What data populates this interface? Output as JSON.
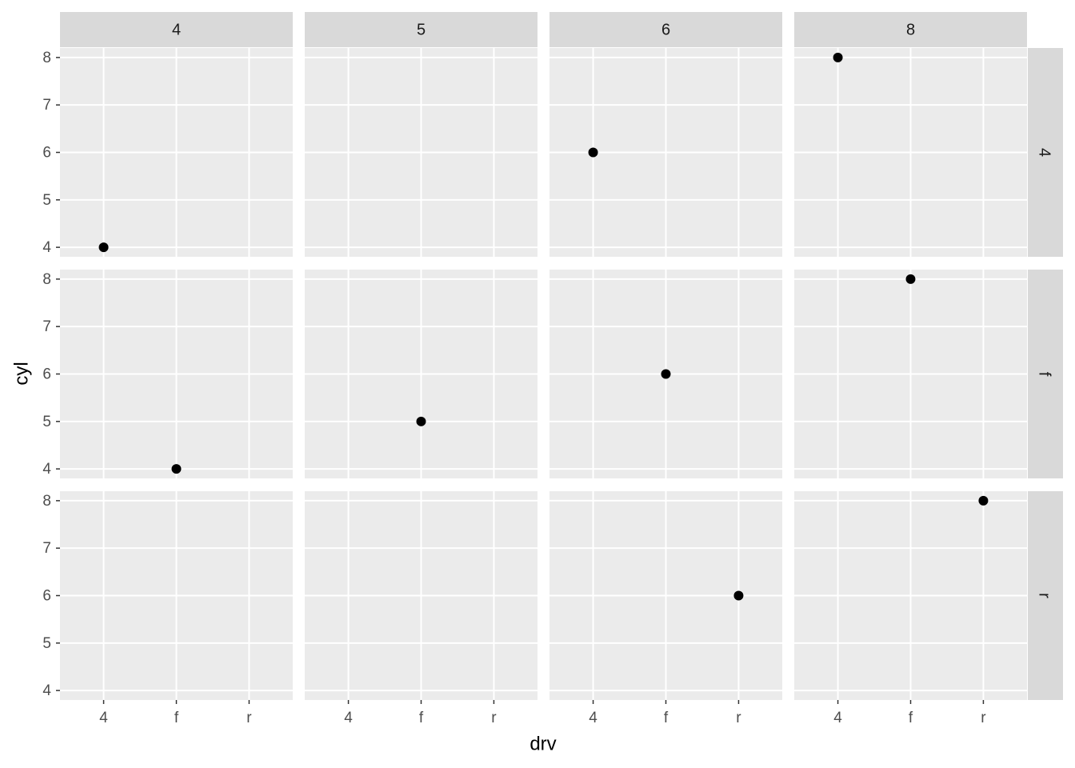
{
  "chart_data": {
    "type": "scatter",
    "x_label": "drv",
    "y_label": "cyl",
    "facet_cols": [
      "4",
      "5",
      "6",
      "8"
    ],
    "facet_rows": [
      "4",
      "f",
      "r"
    ],
    "categories": [
      "4",
      "f",
      "r"
    ],
    "x": [
      "4",
      "4",
      "4",
      "f",
      "f",
      "f",
      "f",
      "r",
      "r"
    ],
    "values": [
      4,
      6,
      8,
      4,
      5,
      6,
      8,
      6,
      8
    ],
    "color": "#000000",
    "ylim": [
      3.8,
      8.2
    ],
    "yticks": [
      4,
      5,
      6,
      7,
      8
    ],
    "grid": true
  }
}
